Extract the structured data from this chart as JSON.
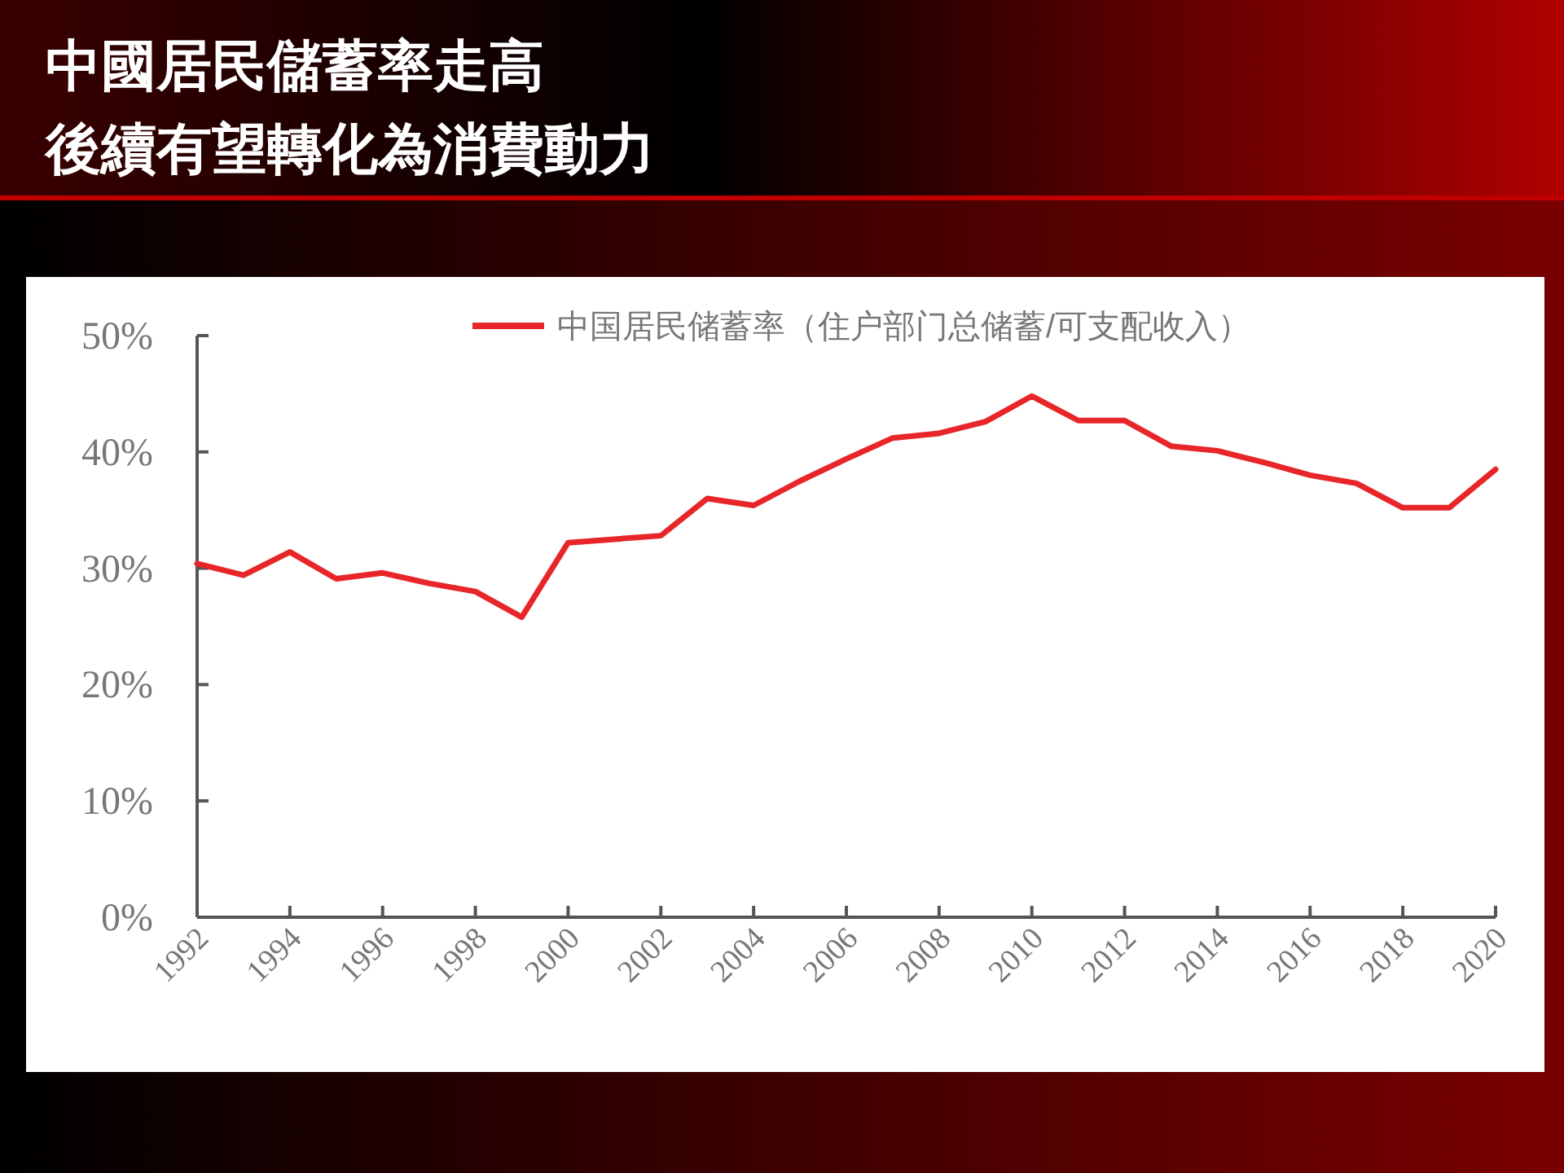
{
  "chart_data": {
    "type": "line",
    "title": "中國居民儲蓄率走高",
    "subtitle": "後續有望轉化為消費動力",
    "x": [
      1992,
      1993,
      1994,
      1995,
      1996,
      1997,
      1998,
      1999,
      2000,
      2001,
      2002,
      2003,
      2004,
      2005,
      2006,
      2007,
      2008,
      2009,
      2010,
      2011,
      2012,
      2013,
      2014,
      2015,
      2016,
      2017,
      2018,
      2019,
      2020
    ],
    "series": [
      {
        "name": "中国居民储蓄率（住户部门总储蓄/可支配收入）",
        "color": "#e8262a",
        "values": [
          30.4,
          29.4,
          31.4,
          29.1,
          29.6,
          28.7,
          28.0,
          25.8,
          32.2,
          32.5,
          32.8,
          36.0,
          35.4,
          37.5,
          39.4,
          41.2,
          41.6,
          42.6,
          44.8,
          42.7,
          42.7,
          40.5,
          40.1,
          39.1,
          38.0,
          37.3,
          35.2,
          35.2,
          38.5
        ]
      }
    ],
    "xlim": [
      1992,
      2020
    ],
    "xticks": [
      1992,
      1994,
      1996,
      1998,
      2000,
      2002,
      2004,
      2006,
      2008,
      2010,
      2012,
      2014,
      2016,
      2018,
      2020
    ],
    "ylim": [
      0,
      50
    ],
    "yticks": [
      {
        "value": 0,
        "label": "0%"
      },
      {
        "value": 10,
        "label": "10%"
      },
      {
        "value": 20,
        "label": "20%"
      },
      {
        "value": 30,
        "label": "30%"
      },
      {
        "value": 40,
        "label": "40%"
      },
      {
        "value": 50,
        "label": "50%"
      }
    ],
    "legend": "top",
    "grid": false,
    "line_style": "solid"
  }
}
